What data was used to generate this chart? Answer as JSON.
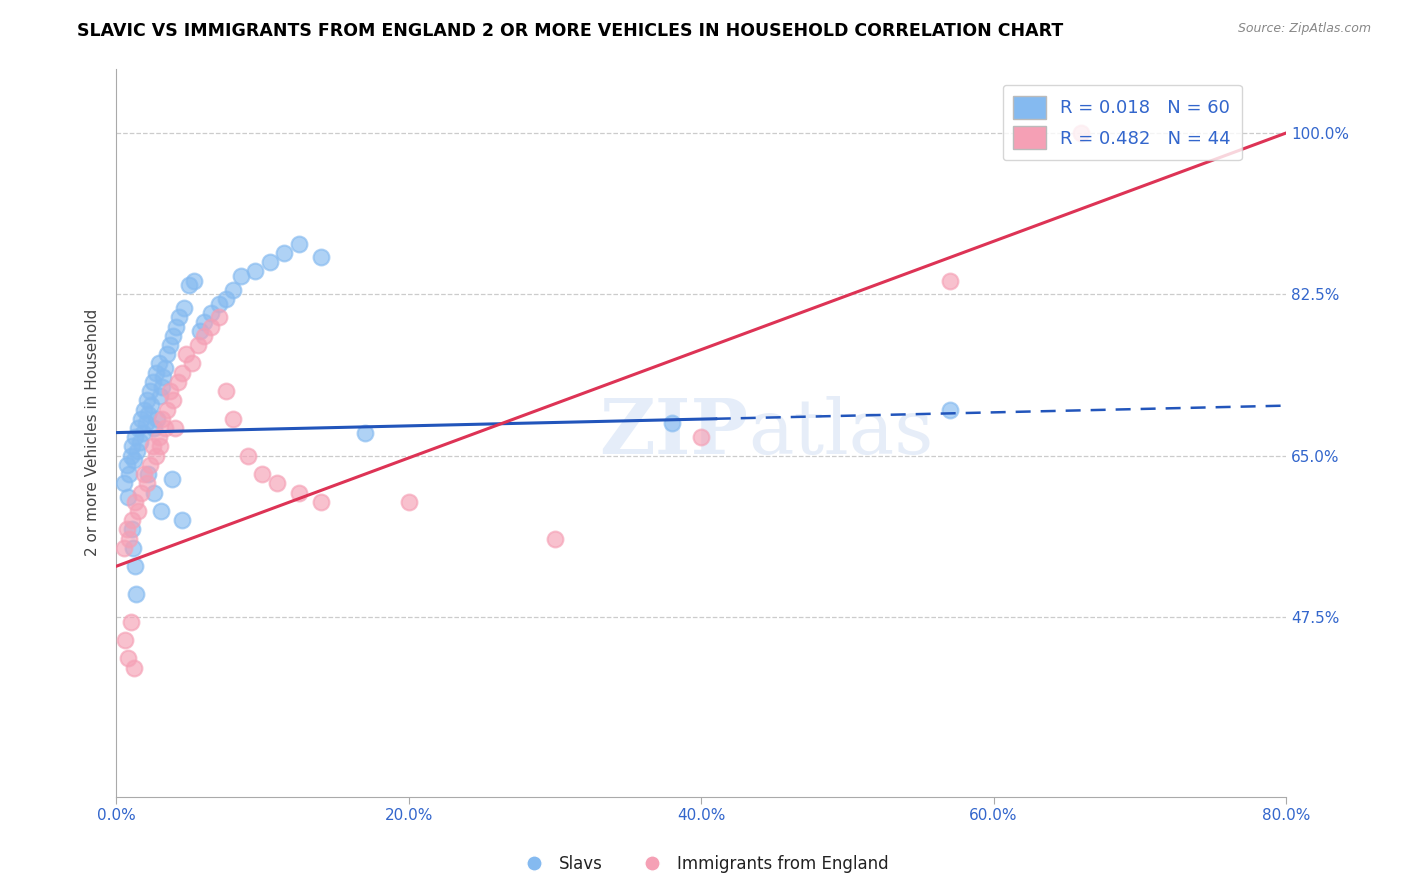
{
  "title": "SLAVIC VS IMMIGRANTS FROM ENGLAND 2 OR MORE VEHICLES IN HOUSEHOLD CORRELATION CHART",
  "source": "Source: ZipAtlas.com",
  "ylabel": "2 or more Vehicles in Household",
  "xlim": [
    0.0,
    80.0
  ],
  "ylim": [
    28.0,
    107.0
  ],
  "yticks": [
    47.5,
    65.0,
    82.5,
    100.0
  ],
  "xticks": [
    0.0,
    20.0,
    40.0,
    60.0,
    80.0
  ],
  "R_slavs": 0.018,
  "N_slavs": 60,
  "R_england": 0.482,
  "N_england": 44,
  "color_slavs": "#85baf0",
  "color_england": "#f5a0b5",
  "trendline_slavs_color": "#2255bb",
  "trendline_england_color": "#dd3355",
  "watermark_zip": "ZIP",
  "watermark_atlas": "atlas",
  "slavs_x": [
    0.5,
    0.7,
    0.8,
    0.9,
    1.0,
    1.1,
    1.2,
    1.3,
    1.4,
    1.5,
    1.6,
    1.7,
    1.8,
    1.9,
    2.0,
    2.1,
    2.2,
    2.3,
    2.4,
    2.5,
    2.6,
    2.7,
    2.8,
    2.9,
    3.0,
    3.1,
    3.2,
    3.3,
    3.5,
    3.7,
    3.9,
    4.1,
    4.3,
    4.6,
    5.0,
    5.3,
    5.7,
    6.0,
    6.5,
    7.0,
    7.5,
    8.0,
    8.5,
    9.5,
    10.5,
    11.5,
    12.5,
    14.0,
    3.8,
    17.0,
    1.05,
    1.15,
    1.25,
    1.35,
    2.15,
    2.55,
    3.05,
    4.5,
    38.0,
    57.0
  ],
  "slavs_y": [
    62.0,
    64.0,
    60.5,
    63.0,
    65.0,
    66.0,
    64.5,
    67.0,
    65.5,
    68.0,
    66.5,
    69.0,
    67.5,
    70.0,
    68.5,
    71.0,
    69.5,
    72.0,
    70.5,
    73.0,
    68.0,
    74.0,
    69.0,
    75.0,
    71.5,
    72.5,
    73.5,
    74.5,
    76.0,
    77.0,
    78.0,
    79.0,
    80.0,
    81.0,
    83.5,
    84.0,
    78.5,
    79.5,
    80.5,
    81.5,
    82.0,
    83.0,
    84.5,
    85.0,
    86.0,
    87.0,
    88.0,
    86.5,
    62.5,
    67.5,
    57.0,
    55.0,
    53.0,
    50.0,
    63.0,
    61.0,
    59.0,
    58.0,
    68.5,
    70.0
  ],
  "england_x": [
    0.5,
    0.7,
    0.9,
    1.1,
    1.3,
    1.5,
    1.7,
    1.9,
    2.1,
    2.3,
    2.5,
    2.7,
    2.9,
    3.1,
    3.3,
    3.5,
    3.7,
    3.9,
    4.2,
    4.5,
    4.8,
    5.2,
    5.6,
    6.0,
    6.5,
    7.0,
    7.5,
    8.0,
    9.0,
    10.0,
    11.0,
    12.5,
    14.0,
    3.0,
    4.0,
    20.0,
    30.0,
    40.0,
    57.0,
    66.0,
    0.6,
    0.8,
    1.0,
    1.2
  ],
  "england_y": [
    55.0,
    57.0,
    56.0,
    58.0,
    60.0,
    59.0,
    61.0,
    63.0,
    62.0,
    64.0,
    66.0,
    65.0,
    67.0,
    69.0,
    68.0,
    70.0,
    72.0,
    71.0,
    73.0,
    74.0,
    76.0,
    75.0,
    77.0,
    78.0,
    79.0,
    80.0,
    72.0,
    69.0,
    65.0,
    63.0,
    62.0,
    61.0,
    60.0,
    66.0,
    68.0,
    60.0,
    56.0,
    67.0,
    84.0,
    100.0,
    45.0,
    43.0,
    47.0,
    42.0
  ]
}
